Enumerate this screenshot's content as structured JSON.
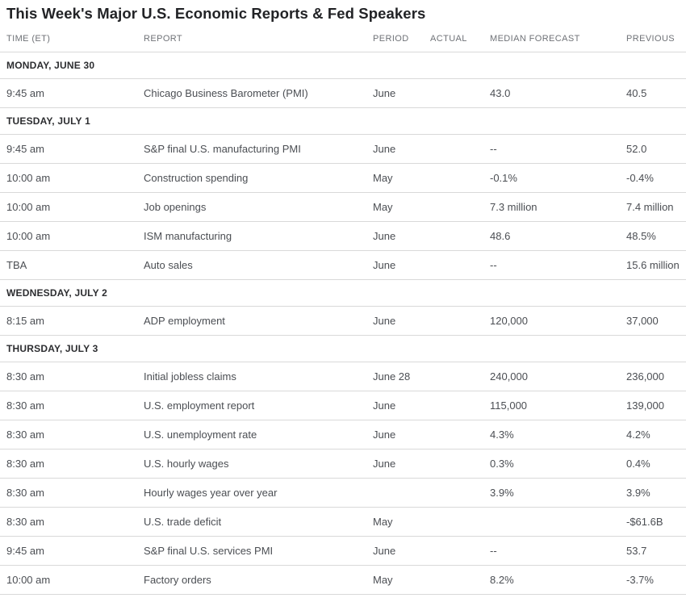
{
  "title": "This Week's Major U.S. Economic Reports & Fed Speakers",
  "colors": {
    "background": "#ffffff",
    "title_text": "#222326",
    "section_text": "#2c2d30",
    "body_text": "#4b4e53",
    "column_header_text": "#6f7277",
    "divider": "#d9d9d9"
  },
  "table": {
    "columns": [
      "TIME (ET)",
      "REPORT",
      "PERIOD",
      "ACTUAL",
      "MEDIAN FORECAST",
      "PREVIOUS"
    ],
    "sections": [
      {
        "day": "MONDAY, JUNE 30",
        "rows": [
          {
            "time": "9:45 am",
            "report": "Chicago Business Barometer (PMI)",
            "period": "June",
            "actual": "",
            "forecast": "43.0",
            "previous": "40.5"
          }
        ]
      },
      {
        "day": "TUESDAY, JULY 1",
        "rows": [
          {
            "time": "9:45 am",
            "report": "S&P final U.S. manufacturing PMI",
            "period": "June",
            "actual": "",
            "forecast": "--",
            "previous": "52.0"
          },
          {
            "time": "10:00 am",
            "report": "Construction spending",
            "period": "May",
            "actual": "",
            "forecast": "-0.1%",
            "previous": "-0.4%"
          },
          {
            "time": "10:00 am",
            "report": "Job openings",
            "period": "May",
            "actual": "",
            "forecast": "7.3 million",
            "previous": "7.4 million"
          },
          {
            "time": "10:00 am",
            "report": "ISM manufacturing",
            "period": "June",
            "actual": "",
            "forecast": "48.6",
            "previous": "48.5%"
          },
          {
            "time": "TBA",
            "report": "Auto sales",
            "period": "June",
            "actual": "",
            "forecast": "--",
            "previous": "15.6 million"
          }
        ]
      },
      {
        "day": "WEDNESDAY, JULY 2",
        "rows": [
          {
            "time": "8:15 am",
            "report": "ADP employment",
            "period": "June",
            "actual": "",
            "forecast": "120,000",
            "previous": "37,000"
          }
        ]
      },
      {
        "day": "THURSDAY, JULY 3",
        "rows": [
          {
            "time": "8:30 am",
            "report": "Initial jobless claims",
            "period": "June 28",
            "actual": "",
            "forecast": "240,000",
            "previous": "236,000"
          },
          {
            "time": "8:30 am",
            "report": "U.S. employment report",
            "period": "June",
            "actual": "",
            "forecast": "115,000",
            "previous": "139,000"
          },
          {
            "time": "8:30 am",
            "report": "U.S. unemployment rate",
            "period": "June",
            "actual": "",
            "forecast": "4.3%",
            "previous": "4.2%"
          },
          {
            "time": "8:30 am",
            "report": "U.S. hourly wages",
            "period": "June",
            "actual": "",
            "forecast": "0.3%",
            "previous": "0.4%"
          },
          {
            "time": "8:30 am",
            "report": "Hourly wages year over year",
            "period": "",
            "actual": "",
            "forecast": "3.9%",
            "previous": "3.9%"
          },
          {
            "time": "8:30 am",
            "report": "U.S. trade deficit",
            "period": "May",
            "actual": "",
            "forecast": "",
            "previous": "-$61.6B"
          },
          {
            "time": "9:45 am",
            "report": "S&P final U.S. services PMI",
            "period": "June",
            "actual": "",
            "forecast": "--",
            "previous": "53.7"
          },
          {
            "time": "10:00 am",
            "report": "Factory orders",
            "period": "May",
            "actual": "",
            "forecast": "8.2%",
            "previous": "-3.7%"
          }
        ]
      }
    ]
  }
}
